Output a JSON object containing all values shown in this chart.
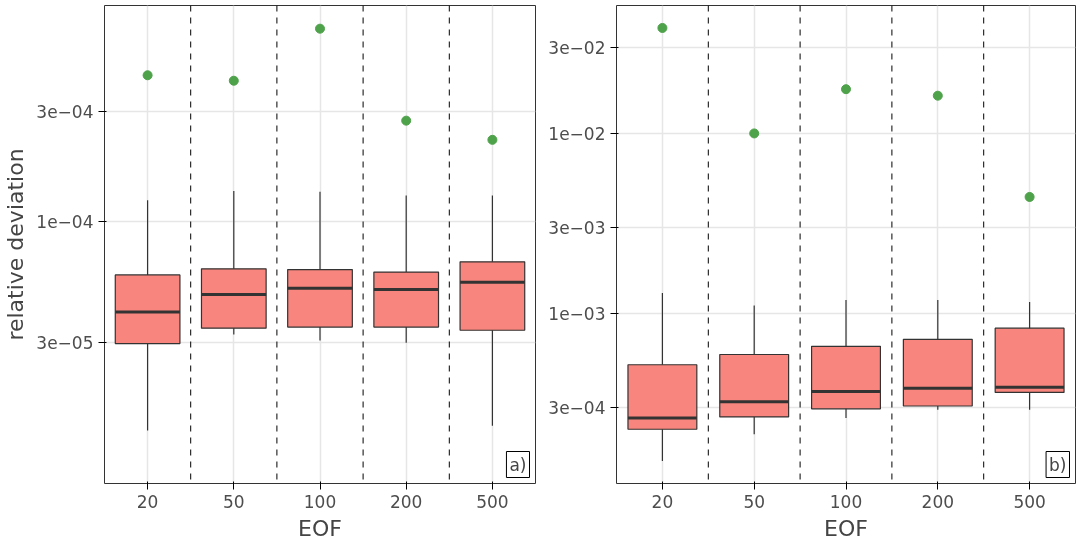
{
  "chart_data": [
    {
      "type": "box",
      "xlabel": "EOF",
      "ylabel": "relative deviation",
      "categories": [
        "20",
        "50",
        "100",
        "200",
        "500"
      ],
      "log": "y",
      "ylim": [
        7.3e-06,
        0.00087
      ],
      "yticks": [
        {
          "value": 3e-05,
          "label": "3e−05"
        },
        {
          "value": 0.0001,
          "label": "1e−04"
        },
        {
          "value": 0.0003,
          "label": "3e−04"
        }
      ],
      "grid": true,
      "color": "#f8867e",
      "boxes": [
        {
          "low": 1.24e-05,
          "q1": 2.96e-05,
          "median": 4.06e-05,
          "q3": 5.88e-05,
          "high": 0.000124,
          "outliers": [
            0.000433
          ]
        },
        {
          "low": 3.24e-05,
          "q1": 3.45e-05,
          "median": 4.83e-05,
          "q3": 6.25e-05,
          "high": 0.000136,
          "outliers": [
            0.00041
          ]
        },
        {
          "low": 3.05e-05,
          "q1": 3.49e-05,
          "median": 5.14e-05,
          "q3": 6.2e-05,
          "high": 0.000135,
          "outliers": [
            0.00069
          ]
        },
        {
          "low": 2.98e-05,
          "q1": 3.49e-05,
          "median": 5.08e-05,
          "q3": 6.05e-05,
          "high": 0.00013,
          "outliers": [
            0.000275
          ]
        },
        {
          "low": 1.3e-05,
          "q1": 3.38e-05,
          "median": 5.47e-05,
          "q3": 6.7e-05,
          "high": 0.00013,
          "outliers": [
            0.000227
          ]
        }
      ],
      "annotations": [
        "a)"
      ]
    },
    {
      "type": "box",
      "xlabel": "EOF",
      "categories": [
        "20",
        "50",
        "100",
        "200",
        "500"
      ],
      "log": "y",
      "ylim": [
        0.000114,
        0.0513
      ],
      "yticks": [
        {
          "value": 0.0003,
          "label": "3e−04"
        },
        {
          "value": 0.001,
          "label": "1e−03"
        },
        {
          "value": 0.003,
          "label": "3e−03"
        },
        {
          "value": 0.01,
          "label": "1e−02"
        },
        {
          "value": 0.03,
          "label": "3e−02"
        }
      ],
      "grid": true,
      "color": "#f8867e",
      "boxes": [
        {
          "low": 0.000152,
          "q1": 0.000228,
          "median": 0.000263,
          "q3": 0.00052,
          "high": 0.0013,
          "outliers": [
            0.0385
          ]
        },
        {
          "low": 0.000214,
          "q1": 0.000267,
          "median": 0.000324,
          "q3": 0.000593,
          "high": 0.00111,
          "outliers": [
            0.01
          ]
        },
        {
          "low": 0.000263,
          "q1": 0.000296,
          "median": 0.00037,
          "q3": 0.000658,
          "high": 0.00119,
          "outliers": [
            0.0176
          ]
        },
        {
          "low": 0.000293,
          "q1": 0.000307,
          "median": 0.000385,
          "q3": 0.00072,
          "high": 0.00119,
          "outliers": [
            0.0162
          ]
        },
        {
          "low": 0.000293,
          "q1": 0.000365,
          "median": 0.00039,
          "q3": 0.00083,
          "high": 0.00116,
          "outliers": [
            0.00444
          ]
        }
      ],
      "annotations": [
        "b)"
      ]
    }
  ]
}
